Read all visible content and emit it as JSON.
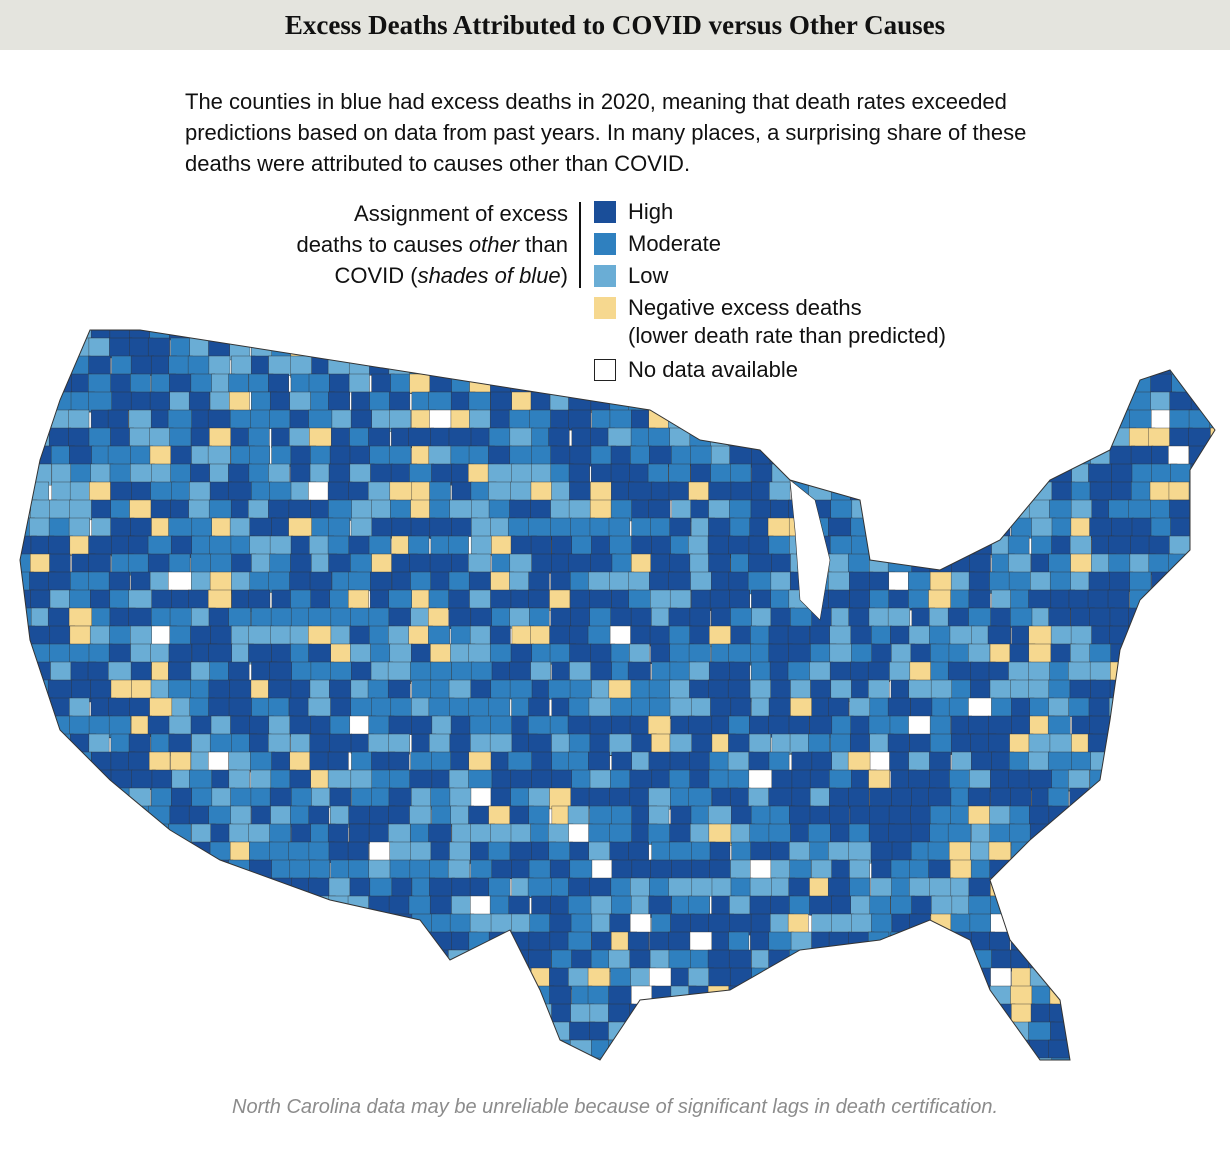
{
  "header": {
    "title": "Excess Deaths Attributed to COVID versus Other Causes"
  },
  "description": "The counties in blue had excess deaths in 2020, meaning that death rates exceeded predictions based on data from past years. In many places, a surprising share of these deaths were attributed to causes other than COVID.",
  "legend": {
    "title_lines": [
      [
        "Assignment of excess"
      ],
      [
        "deaths to causes ",
        "other",
        " than"
      ],
      [
        "COVID (",
        "shades of blue",
        ")"
      ]
    ],
    "items": [
      {
        "label": "High",
        "color": "#1a4e99"
      },
      {
        "label": "Moderate",
        "color": "#2f80bf"
      },
      {
        "label": "Low",
        "color": "#6aadd5"
      },
      {
        "label": "Negative excess deaths",
        "note": "(lower death rate than predicted)",
        "color": "#f6d88f"
      },
      {
        "label": "No data available",
        "color": "#ffffff"
      }
    ]
  },
  "footnote": "North Carolina data may be unreliable because of significant lags in death certification."
}
